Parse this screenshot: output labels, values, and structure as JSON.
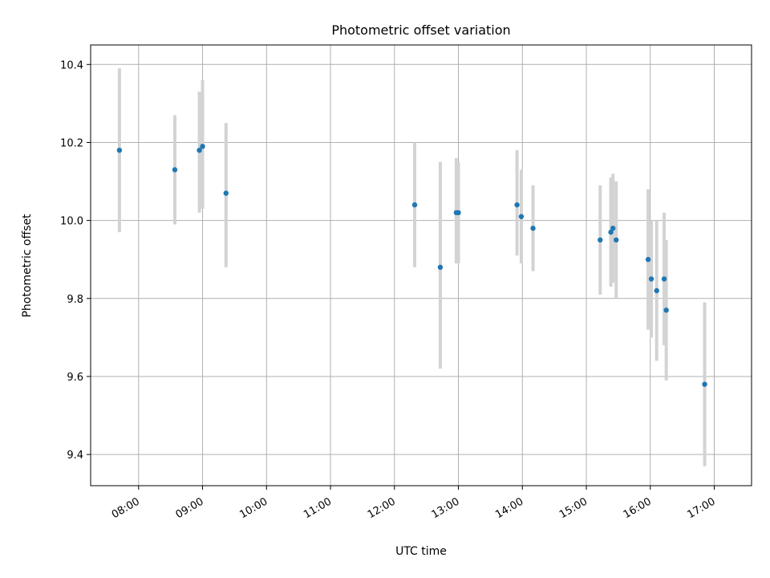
{
  "chart_data": {
    "type": "scatter",
    "title": "Photometric offset variation",
    "xlabel": "UTC time",
    "ylabel": "Photometric offset",
    "xlim": [
      "07:15",
      "17:35"
    ],
    "ylim": [
      9.32,
      10.45
    ],
    "grid": true,
    "x_ticks": [
      "08:00",
      "09:00",
      "10:00",
      "11:00",
      "12:00",
      "13:00",
      "14:00",
      "15:00",
      "16:00",
      "17:00"
    ],
    "y_ticks": [
      "9.4",
      "9.6",
      "9.8",
      "10.0",
      "10.2",
      "10.4"
    ],
    "point_color": "#1f77b4",
    "errorbar_color": "#d3d3d3",
    "points": [
      {
        "t": "07:42",
        "y": 10.18,
        "lo": 9.97,
        "hi": 10.39
      },
      {
        "t": "08:34",
        "y": 10.13,
        "lo": 9.99,
        "hi": 10.27
      },
      {
        "t": "08:57",
        "y": 10.18,
        "lo": 10.02,
        "hi": 10.33
      },
      {
        "t": "09:00",
        "y": 10.19,
        "lo": 10.03,
        "hi": 10.36
      },
      {
        "t": "09:22",
        "y": 10.07,
        "lo": 9.88,
        "hi": 10.25
      },
      {
        "t": "12:19",
        "y": 10.04,
        "lo": 9.88,
        "hi": 10.2
      },
      {
        "t": "12:43",
        "y": 9.88,
        "lo": 9.62,
        "hi": 10.15
      },
      {
        "t": "12:58",
        "y": 10.02,
        "lo": 9.89,
        "hi": 10.16
      },
      {
        "t": "13:00",
        "y": 10.02,
        "lo": 9.89,
        "hi": 10.15
      },
      {
        "t": "13:55",
        "y": 10.04,
        "lo": 9.91,
        "hi": 10.18
      },
      {
        "t": "13:59",
        "y": 10.01,
        "lo": 9.89,
        "hi": 10.13
      },
      {
        "t": "14:10",
        "y": 9.98,
        "lo": 9.87,
        "hi": 10.09
      },
      {
        "t": "15:13",
        "y": 9.95,
        "lo": 9.81,
        "hi": 10.09
      },
      {
        "t": "15:23",
        "y": 9.97,
        "lo": 9.83,
        "hi": 10.11
      },
      {
        "t": "15:25",
        "y": 9.98,
        "lo": 9.84,
        "hi": 10.12
      },
      {
        "t": "15:28",
        "y": 9.95,
        "lo": 9.8,
        "hi": 10.1
      },
      {
        "t": "15:58",
        "y": 9.9,
        "lo": 9.72,
        "hi": 10.08
      },
      {
        "t": "16:01",
        "y": 9.85,
        "lo": 9.7,
        "hi": 10.0
      },
      {
        "t": "16:06",
        "y": 9.82,
        "lo": 9.64,
        "hi": 10.0
      },
      {
        "t": "16:13",
        "y": 9.85,
        "lo": 9.68,
        "hi": 10.02
      },
      {
        "t": "16:15",
        "y": 9.77,
        "lo": 9.59,
        "hi": 9.95
      },
      {
        "t": "16:51",
        "y": 9.58,
        "lo": 9.37,
        "hi": 9.79
      }
    ]
  }
}
